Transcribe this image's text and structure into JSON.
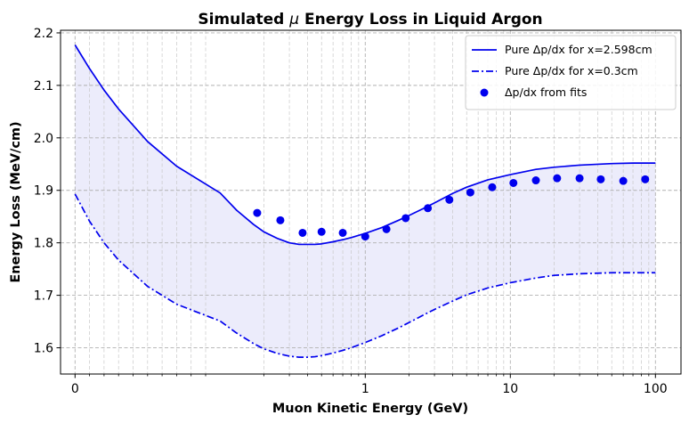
{
  "chart_data": {
    "type": "line",
    "title": "Simulated μ Energy Loss in Liquid Argon",
    "title_parts": [
      "Simulated ",
      "μ",
      " Energy Loss in Liquid Argon"
    ],
    "xlabel": "Muon Kinetic Energy (GeV)",
    "ylabel": "Energy Loss (MeV/cm)",
    "x_scale": "symlog",
    "x_linthresh": 0.1,
    "xlim": [
      -0.01,
      150
    ],
    "ylim": [
      1.55,
      2.205
    ],
    "x_ticks": [
      0,
      1,
      10,
      100
    ],
    "x_tick_labels": [
      "0",
      "1",
      "10",
      "100"
    ],
    "y_ticks": [
      1.6,
      1.7,
      1.8,
      1.9,
      2.0,
      2.1,
      2.2
    ],
    "y_tick_labels": [
      "1.6",
      "1.7",
      "1.8",
      "1.9",
      "2.0",
      "2.1",
      "2.2"
    ],
    "grid": true,
    "legend_position": "top-right",
    "fill_between": {
      "upper": "Pure Δp/dx for x=2.598cm",
      "lower": "Pure Δp/dx for x=0.3cm",
      "color": "#ececfb"
    },
    "series": [
      {
        "name": "Pure Δp/dx for x=2.598cm",
        "style": "solid",
        "color": "#0000ee",
        "x": [
          0,
          0.01,
          0.02,
          0.03,
          0.05,
          0.07,
          0.1,
          0.13,
          0.17,
          0.2,
          0.25,
          0.3,
          0.35,
          0.4,
          0.45,
          0.5,
          0.6,
          0.7,
          0.8,
          1.0,
          1.3,
          1.7,
          2.0,
          2.5,
          3.0,
          4.0,
          5.0,
          7.0,
          10,
          15,
          20,
          30,
          50,
          70,
          100
        ],
        "y": [
          2.177,
          2.132,
          2.091,
          2.055,
          1.993,
          1.946,
          1.895,
          1.862,
          1.835,
          1.821,
          1.808,
          1.8,
          1.797,
          1.797,
          1.797,
          1.798,
          1.802,
          1.806,
          1.81,
          1.818,
          1.829,
          1.843,
          1.852,
          1.865,
          1.876,
          1.894,
          1.906,
          1.92,
          1.93,
          1.94,
          1.944,
          1.948,
          1.951,
          1.952,
          1.952
        ]
      },
      {
        "name": "Pure Δp/dx for x=0.3cm",
        "style": "dashdot",
        "color": "#0000ee",
        "x": [
          0,
          0.01,
          0.02,
          0.03,
          0.05,
          0.07,
          0.1,
          0.13,
          0.17,
          0.2,
          0.25,
          0.3,
          0.35,
          0.4,
          0.45,
          0.5,
          0.6,
          0.7,
          0.8,
          1.0,
          1.3,
          1.7,
          2.0,
          2.5,
          3.0,
          4.0,
          5.0,
          7.0,
          10,
          15,
          20,
          30,
          50,
          70,
          100
        ],
        "y": [
          1.893,
          1.841,
          1.8,
          1.767,
          1.717,
          1.683,
          1.651,
          1.628,
          1.608,
          1.598,
          1.589,
          1.584,
          1.582,
          1.582,
          1.583,
          1.585,
          1.59,
          1.595,
          1.6,
          1.61,
          1.623,
          1.638,
          1.648,
          1.662,
          1.673,
          1.689,
          1.701,
          1.714,
          1.724,
          1.733,
          1.738,
          1.741,
          1.743,
          1.743,
          1.743
        ]
      },
      {
        "name": "Δp/dx from fits",
        "style": "marker",
        "color": "#0000ee",
        "x": [
          0.18,
          0.26,
          0.37,
          0.5,
          0.7,
          1.0,
          1.4,
          1.9,
          2.7,
          3.8,
          5.3,
          7.5,
          10.5,
          15,
          21,
          30,
          42,
          60,
          85
        ],
        "y": [
          1.857,
          1.843,
          1.819,
          1.821,
          1.819,
          1.812,
          1.826,
          1.847,
          1.866,
          1.882,
          1.896,
          1.906,
          1.914,
          1.919,
          1.923,
          1.923,
          1.921,
          1.918,
          1.921
        ]
      }
    ]
  }
}
